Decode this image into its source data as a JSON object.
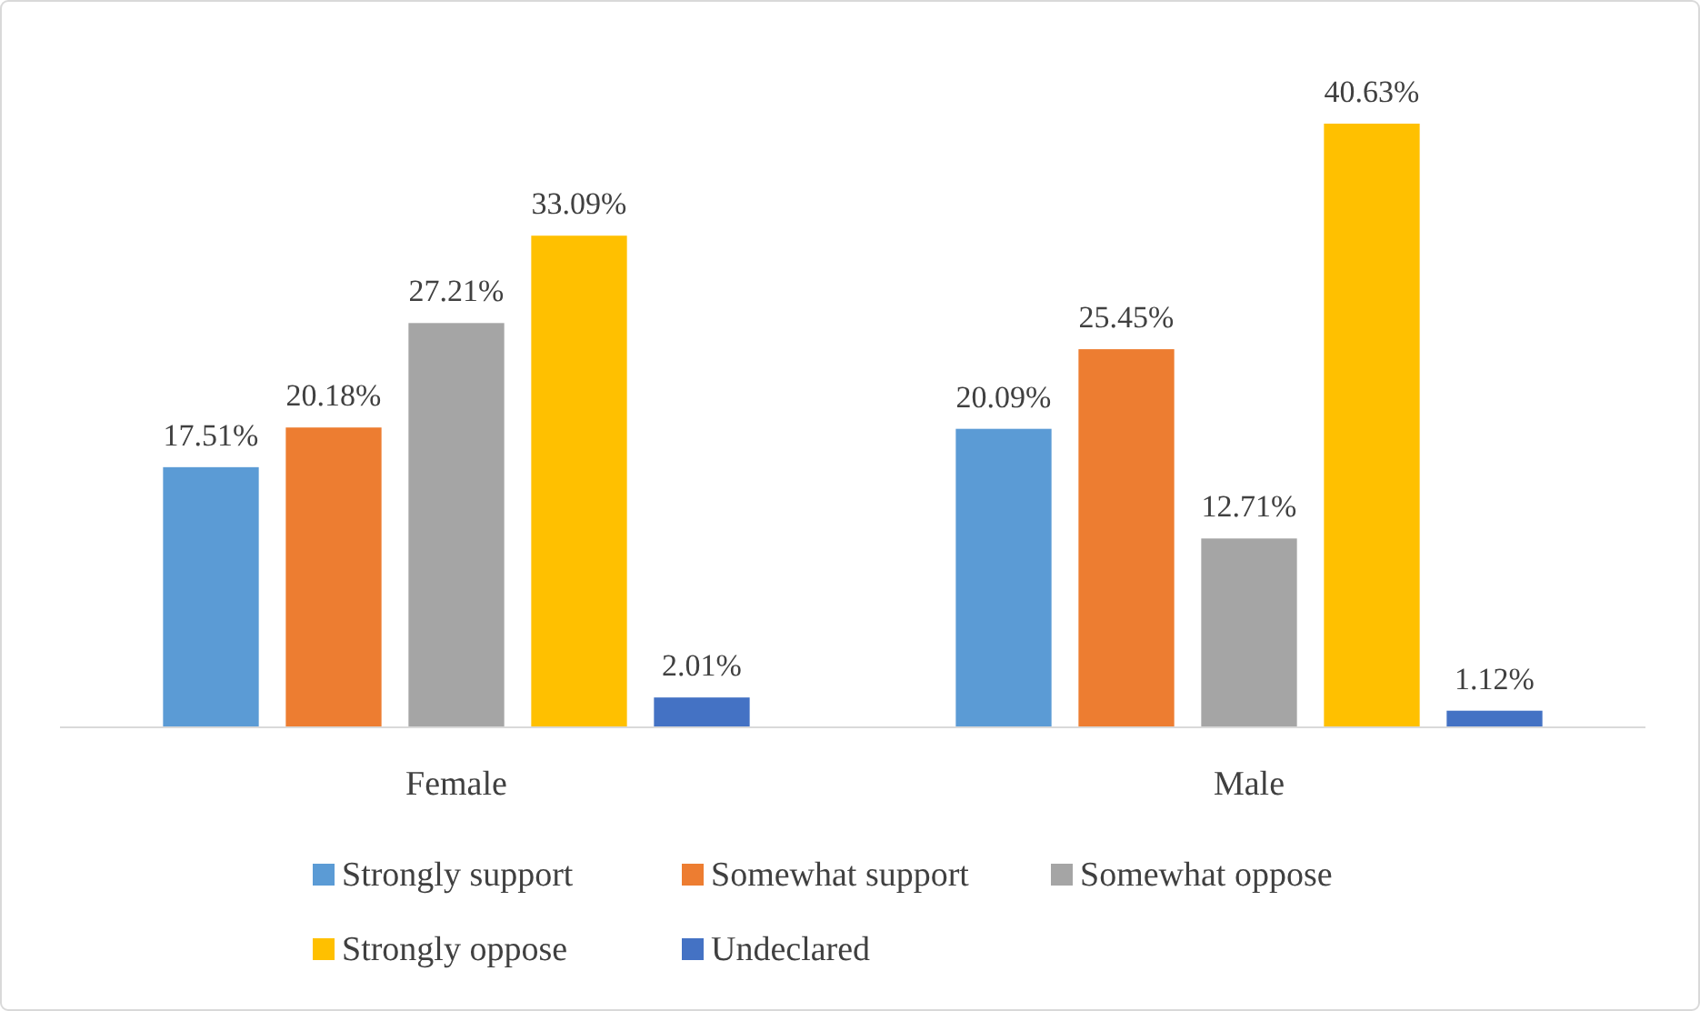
{
  "chart_data": {
    "type": "bar",
    "categories": [
      "Female",
      "Male"
    ],
    "legend": "bottom",
    "series": [
      {
        "name": "Strongly support",
        "color": "#5b9bd5",
        "values": [
          17.51,
          20.09
        ],
        "value_labels": [
          "17.51%",
          "20.09%"
        ]
      },
      {
        "name": "Somewhat support",
        "color": "#ed7d31",
        "values": [
          20.18,
          25.45
        ],
        "value_labels": [
          "20.18%",
          "25.45%"
        ]
      },
      {
        "name": "Somewhat oppose",
        "color": "#a5a5a5",
        "values": [
          27.21,
          12.71
        ],
        "value_labels": [
          "27.21%",
          "12.71%"
        ]
      },
      {
        "name": "Strongly oppose",
        "color": "#ffc000",
        "values": [
          33.09,
          40.63
        ],
        "value_labels": [
          "33.09%",
          "40.63%"
        ]
      },
      {
        "name": "Undeclared",
        "color": "#4472c4",
        "values": [
          2.01,
          1.12
        ],
        "value_labels": [
          "2.01%",
          "1.12%"
        ]
      }
    ]
  }
}
